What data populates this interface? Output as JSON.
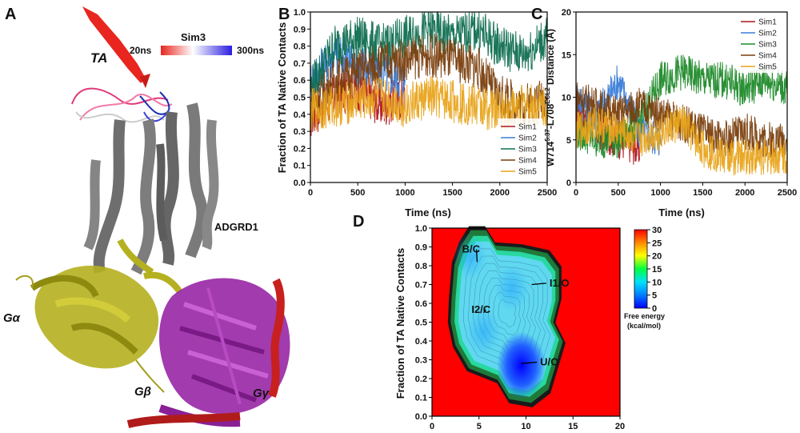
{
  "panels": {
    "a": {
      "letter": "A"
    },
    "b": {
      "letter": "B"
    },
    "c": {
      "letter": "C"
    },
    "d": {
      "letter": "D"
    }
  },
  "structure": {
    "ta_label": "TA",
    "sim3_label": "Sim3",
    "time_start": "20ns",
    "time_end": "300ns",
    "receptor_label": "ADGRD1",
    "g_alpha": "Gα",
    "g_beta": "Gβ",
    "g_gamma": "Gγ",
    "colors": {
      "ta": "#e8251f",
      "receptor": "#7a7a7a",
      "g_alpha": "#b5b020",
      "g_beta": "#9a2aa6",
      "g_gamma": "#c8201e"
    }
  },
  "chart_data": [
    {
      "id": "B",
      "type": "line",
      "xlabel": "Time (ns)",
      "ylabel": "Fraction of TA Native Contacts",
      "xlim": [
        0,
        2500
      ],
      "ylim": [
        0,
        1.0
      ],
      "xticks": [
        "0",
        "500",
        "1000",
        "1500",
        "2000",
        "2500"
      ],
      "yticks": [
        "0.0",
        "0.1",
        "0.2",
        "0.3",
        "0.4",
        "0.5",
        "0.6",
        "0.7",
        "0.8",
        "0.9",
        "1.0"
      ],
      "legend_position": "bottom-right",
      "series": [
        {
          "name": "Sim1",
          "color": "#b0141c",
          "x": [
            0,
            250,
            500,
            750,
            1000
          ],
          "y": [
            0.38,
            0.5,
            0.55,
            0.45,
            0.5
          ]
        },
        {
          "name": "Sim2",
          "color": "#3b7dd8",
          "x": [
            0,
            250,
            500,
            750,
            1000
          ],
          "y": [
            0.6,
            0.75,
            0.7,
            0.65,
            0.6
          ]
        },
        {
          "name": "Sim3",
          "color": "#0f6e50",
          "x": [
            0,
            250,
            500,
            750,
            1000,
            1250,
            1500,
            1750,
            2000,
            2250,
            2500
          ],
          "y": [
            0.55,
            0.8,
            0.85,
            0.8,
            0.85,
            0.9,
            0.85,
            0.9,
            0.8,
            0.75,
            0.85
          ]
        },
        {
          "name": "Sim4",
          "color": "#7a3f0e",
          "x": [
            0,
            250,
            500,
            750,
            1000,
            1250,
            1500,
            1750,
            2000,
            2250,
            2500
          ],
          "y": [
            0.45,
            0.6,
            0.65,
            0.7,
            0.72,
            0.75,
            0.72,
            0.68,
            0.5,
            0.45,
            0.5
          ]
        },
        {
          "name": "Sim5",
          "color": "#e8a41c",
          "x": [
            0,
            250,
            500,
            750,
            1000,
            1250,
            1500,
            1750,
            2000,
            2250,
            2500
          ],
          "y": [
            0.42,
            0.45,
            0.48,
            0.5,
            0.45,
            0.5,
            0.48,
            0.45,
            0.42,
            0.45,
            0.45
          ]
        }
      ]
    },
    {
      "id": "C",
      "type": "line",
      "xlabel": "Time (ns)",
      "ylabel": "W714^{5.37}-L708^{ECL2} Distance (Å)",
      "ylabel_parts": {
        "pre": "W714",
        "sup1": "5.37",
        "mid": "-L708",
        "sup2": "ECL2",
        "post": " Distance (Å)"
      },
      "xlim": [
        0,
        2500
      ],
      "ylim": [
        0,
        20
      ],
      "xticks": [
        "0",
        "500",
        "1000",
        "1500",
        "2000",
        "2500"
      ],
      "yticks": [
        "0",
        "5",
        "10",
        "15",
        "20"
      ],
      "legend_position": "top-right",
      "series": [
        {
          "name": "Sim1",
          "color": "#b0141c",
          "x": [
            0,
            250,
            500,
            750
          ],
          "y": [
            9,
            6,
            5,
            4
          ]
        },
        {
          "name": "Sim2",
          "color": "#3b7dd8",
          "x": [
            0,
            250,
            500,
            750,
            1000
          ],
          "y": [
            10,
            8,
            12,
            6,
            5
          ]
        },
        {
          "name": "Sim3",
          "color": "#1f8a2a",
          "x": [
            0,
            250,
            500,
            750,
            1000,
            1250,
            1500,
            1750,
            2000,
            2250,
            2500
          ],
          "y": [
            6,
            5,
            5,
            7,
            12,
            13,
            12,
            12,
            11,
            12,
            11
          ]
        },
        {
          "name": "Sim4",
          "color": "#7a3f0e",
          "x": [
            0,
            250,
            500,
            750,
            1000,
            1250,
            1500,
            1750,
            2000,
            2250,
            2500
          ],
          "y": [
            10,
            9,
            8,
            9,
            8,
            7,
            6,
            5,
            6,
            5,
            5
          ]
        },
        {
          "name": "Sim5",
          "color": "#e8a41c",
          "x": [
            0,
            250,
            500,
            750,
            1000,
            1250,
            1500,
            1750,
            2000,
            2250,
            2500
          ],
          "y": [
            6,
            7,
            6,
            5,
            6,
            7,
            4,
            3,
            3,
            3,
            3
          ]
        }
      ]
    },
    {
      "id": "D",
      "type": "heatmap",
      "xlabel": "",
      "ylabel": "Fraction of TA Native Contacts",
      "xlim": [
        0,
        20
      ],
      "ylim": [
        0,
        1.0
      ],
      "xticks": [
        "0",
        "5",
        "10",
        "15",
        "20"
      ],
      "yticks": [
        "0.0",
        "0.1",
        "0.2",
        "0.3",
        "0.4",
        "0.5",
        "0.6",
        "0.7",
        "0.8",
        "0.9",
        "1.0"
      ],
      "colorbar": {
        "min": 0,
        "max": 30,
        "ticks": [
          "30",
          "25",
          "20",
          "15",
          "10",
          "5",
          "0"
        ],
        "label_line1": "Free energy",
        "label_line2": "(kcal/mol)"
      },
      "background_value": 30,
      "annotations": [
        {
          "text": "B/C",
          "x": 3.2,
          "y": 0.87
        },
        {
          "text": "I1/O",
          "x": 12.5,
          "y": 0.69
        },
        {
          "text": "I2/C",
          "x": 4.2,
          "y": 0.55
        },
        {
          "text": "U/O",
          "x": 11.5,
          "y": 0.27
        }
      ],
      "minima": [
        {
          "x": 9.5,
          "y": 0.27,
          "value": 0
        },
        {
          "x": 8.5,
          "y": 0.68,
          "value": 8
        },
        {
          "x": 5.5,
          "y": 0.45,
          "value": 9
        },
        {
          "x": 4.0,
          "y": 0.85,
          "value": 9
        }
      ]
    }
  ]
}
